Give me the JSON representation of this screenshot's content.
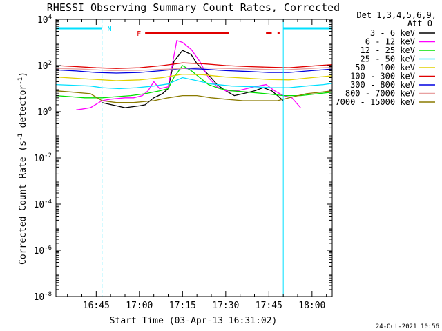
{
  "chart_data": {
    "type": "line",
    "title": "RHESSI Observing Summary Count Rates, Corrected",
    "xlabel": "Start Time (03-Apr-13 16:31:02)",
    "ylabel": "Corrected Count Rate (s⁻¹ detector⁻¹)",
    "ylabel_parts": {
      "main": "Corrected Count Rate (s",
      "sup1": "-1",
      "mid": " detector",
      "sup2": "-1",
      "end": ")"
    },
    "y_scale": "log",
    "ylim": [
      1e-08,
      10000
    ],
    "xlim": [
      "16:31",
      "18:07"
    ],
    "x_ticks": [
      "16:45",
      "17:00",
      "17:15",
      "17:30",
      "17:45",
      "18:00"
    ],
    "y_ticks": [
      {
        "exp": 4,
        "label": "4"
      },
      {
        "exp": 2,
        "label": "2"
      },
      {
        "exp": 0,
        "label": "0"
      },
      {
        "exp": -2,
        "label": "-2"
      },
      {
        "exp": -4,
        "label": "-4"
      },
      {
        "exp": -6,
        "label": "-6"
      },
      {
        "exp": -8,
        "label": "-8"
      }
    ],
    "y_tick_base": "10",
    "legend": {
      "placement": "right",
      "header": [
        "Det 1,3,4,5,6,9,",
        "Att 0"
      ],
      "entries": [
        {
          "label": "3 - 6 keV",
          "color": "#000000"
        },
        {
          "label": "6 - 12 keV",
          "color": "#ff00ff"
        },
        {
          "label": "12 - 25 keV",
          "color": "#00e000"
        },
        {
          "label": "25 - 50 keV",
          "color": "#00e0ff"
        },
        {
          "label": "50 - 100 keV",
          "color": "#e0d000"
        },
        {
          "label": "100 - 300 keV",
          "color": "#e00000"
        },
        {
          "label": "300 - 800 keV",
          "color": "#0000e0"
        },
        {
          "label": "800 - 7000 keV",
          "color": "#e8a0a0"
        },
        {
          "label": "7000 - 15000 keV",
          "color": "#8a7a00"
        }
      ]
    },
    "annotations": {
      "night_label": "N",
      "flare_label": "F",
      "night_intervals": [
        [
          "16:31",
          "16:47"
        ],
        [
          "17:50",
          "18:07"
        ]
      ],
      "flare_intervals": [
        [
          "17:02",
          "17:31"
        ],
        [
          "17:44",
          "17:46"
        ],
        [
          "17:48",
          "17:48"
        ]
      ]
    },
    "series": [
      {
        "name": "3 - 6 keV",
        "color": "#000000",
        "points": [
          [
            "16:47",
            2.5
          ],
          [
            "16:55",
            1.5
          ],
          [
            "17:00",
            1.8
          ],
          [
            "17:02",
            2
          ],
          [
            "17:05",
            4
          ],
          [
            "17:08",
            6
          ],
          [
            "17:10",
            10
          ],
          [
            "17:12",
            150
          ],
          [
            "17:15",
            450
          ],
          [
            "17:18",
            300
          ],
          [
            "17:20",
            120
          ],
          [
            "17:24",
            40
          ],
          [
            "17:27",
            15
          ],
          [
            "17:30",
            8
          ],
          [
            "17:33",
            5
          ],
          [
            "17:36",
            6
          ],
          [
            "17:40",
            8
          ],
          [
            "17:43",
            11
          ],
          [
            "17:46",
            8
          ],
          [
            "17:48",
            5
          ],
          [
            "17:50",
            3
          ]
        ]
      },
      {
        "name": "6 - 12 keV",
        "color": "#ff00ff",
        "points": [
          [
            "16:38",
            1.2
          ],
          [
            "16:40",
            1.3
          ],
          [
            "16:43",
            1.5
          ],
          [
            "16:47",
            3
          ],
          [
            "16:50",
            3.5
          ],
          [
            "16:55",
            4
          ],
          [
            "16:58",
            4
          ],
          [
            "17:01",
            5
          ],
          [
            "17:03",
            8
          ],
          [
            "17:05",
            20
          ],
          [
            "17:07",
            10
          ],
          [
            "17:10",
            12
          ],
          [
            "17:13",
            1200
          ],
          [
            "17:15",
            1000
          ],
          [
            "17:18",
            500
          ],
          [
            "17:21",
            150
          ],
          [
            "17:24",
            30
          ],
          [
            "17:27",
            12
          ],
          [
            "17:30",
            8
          ],
          [
            "17:34",
            8
          ],
          [
            "17:40",
            12
          ],
          [
            "17:44",
            15
          ],
          [
            "17:47",
            8
          ],
          [
            "17:50",
            5
          ],
          [
            "17:53",
            4
          ],
          [
            "17:56",
            1.5
          ]
        ]
      },
      {
        "name": "12 - 25 keV",
        "color": "#00e000",
        "points": [
          [
            "16:31",
            5
          ],
          [
            "16:36",
            4.5
          ],
          [
            "16:41",
            4
          ],
          [
            "16:47",
            4
          ],
          [
            "16:52",
            4.5
          ],
          [
            "16:57",
            5
          ],
          [
            "17:02",
            6
          ],
          [
            "17:07",
            8
          ],
          [
            "17:10",
            10
          ],
          [
            "17:12",
            30
          ],
          [
            "17:15",
            100
          ],
          [
            "17:18",
            60
          ],
          [
            "17:21",
            30
          ],
          [
            "17:24",
            15
          ],
          [
            "17:28",
            10
          ],
          [
            "17:32",
            8
          ],
          [
            "17:38",
            7
          ],
          [
            "17:44",
            6
          ],
          [
            "17:50",
            5
          ],
          [
            "17:56",
            5
          ],
          [
            "18:02",
            6
          ],
          [
            "18:07",
            7
          ]
        ]
      },
      {
        "name": "25 - 50 keV",
        "color": "#00e0ff",
        "points": [
          [
            "16:31",
            15
          ],
          [
            "16:37",
            14
          ],
          [
            "16:43",
            13
          ],
          [
            "16:47",
            11
          ],
          [
            "16:53",
            10
          ],
          [
            "16:59",
            11
          ],
          [
            "17:05",
            13
          ],
          [
            "17:10",
            16
          ],
          [
            "17:15",
            30
          ],
          [
            "17:20",
            22
          ],
          [
            "17:25",
            16
          ],
          [
            "17:32",
            13
          ],
          [
            "17:40",
            12
          ],
          [
            "17:46",
            11
          ],
          [
            "17:52",
            11
          ],
          [
            "17:58",
            13
          ],
          [
            "18:04",
            15
          ],
          [
            "18:07",
            17
          ]
        ]
      },
      {
        "name": "50 - 100 keV",
        "color": "#e0d000",
        "points": [
          [
            "16:31",
            32
          ],
          [
            "16:38",
            28
          ],
          [
            "16:45",
            25
          ],
          [
            "16:52",
            22
          ],
          [
            "17:00",
            24
          ],
          [
            "17:08",
            30
          ],
          [
            "17:15",
            42
          ],
          [
            "17:22",
            40
          ],
          [
            "17:30",
            32
          ],
          [
            "17:38",
            28
          ],
          [
            "17:45",
            25
          ],
          [
            "17:52",
            24
          ],
          [
            "18:00",
            30
          ],
          [
            "18:07",
            36
          ]
        ]
      },
      {
        "name": "100 - 300 keV",
        "color": "#e00000",
        "points": [
          [
            "16:31",
            100
          ],
          [
            "16:38",
            90
          ],
          [
            "16:45",
            80
          ],
          [
            "16:52",
            75
          ],
          [
            "17:00",
            80
          ],
          [
            "17:08",
            100
          ],
          [
            "17:15",
            130
          ],
          [
            "17:22",
            120
          ],
          [
            "17:30",
            100
          ],
          [
            "17:38",
            90
          ],
          [
            "17:45",
            85
          ],
          [
            "17:52",
            80
          ],
          [
            "18:00",
            95
          ],
          [
            "18:07",
            110
          ]
        ]
      },
      {
        "name": "300 - 800 keV",
        "color": "#0000e0",
        "points": [
          [
            "16:31",
            65
          ],
          [
            "16:38",
            58
          ],
          [
            "16:45",
            50
          ],
          [
            "16:52",
            47
          ],
          [
            "17:00",
            50
          ],
          [
            "17:08",
            60
          ],
          [
            "17:15",
            75
          ],
          [
            "17:22",
            70
          ],
          [
            "17:30",
            60
          ],
          [
            "17:38",
            55
          ],
          [
            "17:45",
            50
          ],
          [
            "17:52",
            50
          ],
          [
            "18:00",
            60
          ],
          [
            "18:07",
            70
          ]
        ]
      },
      {
        "name": "800 - 7000 keV",
        "color": "#e8a0a0",
        "points": [
          [
            "16:31",
            75
          ],
          [
            "16:40",
            70
          ],
          [
            "16:50",
            60
          ],
          [
            "17:00",
            62
          ],
          [
            "17:10",
            70
          ],
          [
            "17:20",
            80
          ],
          [
            "17:30",
            75
          ],
          [
            "17:40",
            70
          ],
          [
            "17:50",
            65
          ],
          [
            "18:00",
            75
          ],
          [
            "18:07",
            85
          ]
        ]
      },
      {
        "name": "7000 - 15000 keV",
        "color": "#8a7a00",
        "points": [
          [
            "16:31",
            8
          ],
          [
            "16:37",
            7
          ],
          [
            "16:43",
            6
          ],
          [
            "16:47",
            3
          ],
          [
            "16:52",
            2.5
          ],
          [
            "16:58",
            2.5
          ],
          [
            "17:05",
            3
          ],
          [
            "17:10",
            4
          ],
          [
            "17:15",
            5
          ],
          [
            "17:20",
            5
          ],
          [
            "17:25",
            4
          ],
          [
            "17:30",
            3.5
          ],
          [
            "17:36",
            3
          ],
          [
            "17:42",
            3
          ],
          [
            "17:48",
            3
          ],
          [
            "17:52",
            4
          ],
          [
            "17:58",
            6
          ],
          [
            "18:03",
            7
          ],
          [
            "18:07",
            8
          ]
        ]
      }
    ]
  },
  "footer_date": "24-Oct-2021 10:56"
}
